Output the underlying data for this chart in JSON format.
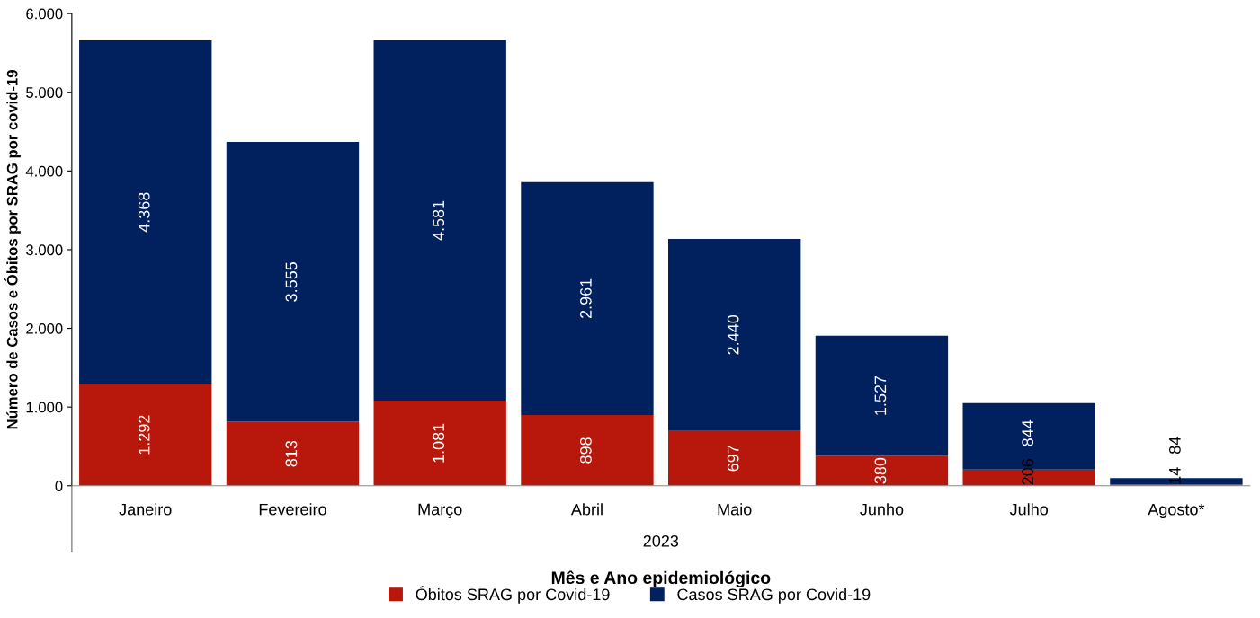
{
  "chart_data": {
    "type": "bar",
    "stacked": true,
    "xlabel": "Mês e Ano epidemiológico",
    "ylabel": "Número de Casos e Óbitos por SRAG por covid-19",
    "categories": [
      "Janeiro",
      "Fevereiro",
      "Março",
      "Abril",
      "Maio",
      "Junho",
      "Julho",
      "Agosto*"
    ],
    "series": [
      {
        "name": "Óbitos SRAG por Covid-19",
        "color": "#b8180c",
        "values": [
          1292,
          813,
          1081,
          898,
          697,
          380,
          206,
          14
        ],
        "value_labels": [
          "1.292",
          "813",
          "1.081",
          "898",
          "697",
          "380",
          "206",
          "14"
        ]
      },
      {
        "name": "Casos SRAG por Covid-19",
        "color": "#01215e",
        "values": [
          4368,
          3555,
          4581,
          2961,
          2440,
          1527,
          844,
          84
        ],
        "value_labels": [
          "4.368",
          "3.555",
          "4.581",
          "2.961",
          "2.440",
          "1.527",
          "844",
          "84"
        ]
      }
    ],
    "ylim": [
      0,
      6000
    ],
    "yticks": [
      0,
      {
        "value": 1000,
        "label": "1.000"
      },
      {
        "value": 2000,
        "label": "2.000"
      },
      {
        "value": 3000,
        "label": "3.000"
      },
      {
        "value": 4000,
        "label": "4.000"
      },
      {
        "value": 5000,
        "label": "5.000"
      },
      {
        "value": 6000,
        "label": "6.000"
      }
    ],
    "annotations": [
      "2023"
    ],
    "legend": "bottom",
    "grid": false
  }
}
